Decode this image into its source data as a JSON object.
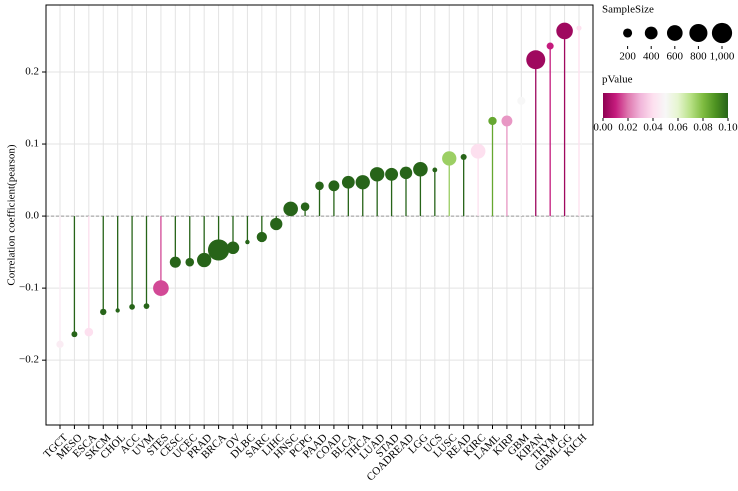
{
  "chart_data": {
    "type": "lollipop",
    "y_label": "Correlation coefficient(pearson)",
    "categories": [
      "TGCT",
      "MESO",
      "ESCA",
      "SKCM",
      "CHOL",
      "ACC",
      "UVM",
      "STES",
      "CESC",
      "UCEC",
      "PRAD",
      "BRCA",
      "OV",
      "DLBC",
      "SARC",
      "LIHC",
      "HNSC",
      "PCPG",
      "PAAD",
      "COAD",
      "BLCA",
      "THCA",
      "LUAD",
      "STAD",
      "COADREAD",
      "LGG",
      "UCS",
      "LUSC",
      "READ",
      "KIRC",
      "LAML",
      "KIRP",
      "GBM",
      "KIPAN",
      "THYM",
      "GBMLGG",
      "KICH"
    ],
    "values": [
      -0.178,
      -0.164,
      -0.161,
      -0.133,
      -0.131,
      -0.126,
      -0.125,
      -0.1,
      -0.064,
      -0.064,
      -0.061,
      -0.047,
      -0.044,
      -0.036,
      -0.029,
      -0.011,
      0.01,
      0.013,
      0.042,
      0.042,
      0.047,
      0.047,
      0.058,
      0.058,
      0.06,
      0.065,
      0.064,
      0.08,
      0.082,
      0.09,
      0.132,
      0.132,
      0.16,
      0.217,
      0.236,
      0.257,
      0.261
    ],
    "sizes": [
      130,
      85,
      180,
      100,
      45,
      79,
      80,
      600,
      300,
      180,
      500,
      1100,
      380,
      48,
      260,
      370,
      520,
      180,
      180,
      290,
      400,
      500,
      510,
      410,
      380,
      520,
      57,
      500,
      90,
      530,
      170,
      290,
      160,
      880,
      120,
      670,
      65
    ],
    "pvalues": [
      0.045,
      0.1,
      0.04,
      0.1,
      0.1,
      0.1,
      0.1,
      0.015,
      0.1,
      0.1,
      0.1,
      0.1,
      0.1,
      0.1,
      0.1,
      0.1,
      0.1,
      0.1,
      0.1,
      0.1,
      0.1,
      0.1,
      0.1,
      0.1,
      0.1,
      0.1,
      0.1,
      0.075,
      0.1,
      0.04,
      0.085,
      0.025,
      0.05,
      0.003,
      0.01,
      0.003,
      0.04
    ],
    "ylim": [
      -0.29,
      0.293
    ],
    "yticks": [
      {
        "value": -0.2,
        "label": "−0.2"
      },
      {
        "value": -0.1,
        "label": "−0.1"
      },
      {
        "value": 0,
        "label": "0.0"
      },
      0.1,
      0.2
    ],
    "grid": true,
    "size_legend_title": "SampleSize",
    "size_legend_ticks": [
      200,
      400,
      600,
      800,
      {
        "value": 1000,
        "label": "1,000"
      }
    ],
    "color_legend_title": "pValue",
    "color_legend_lim": [
      0,
      0.1
    ],
    "color_legend_ticks": [
      {
        "value": 0,
        "label": "0.00"
      },
      {
        "value": 0.02,
        "label": "0.02"
      },
      {
        "value": 0.04,
        "label": "0.04"
      },
      {
        "value": 0.06,
        "label": "0.06"
      },
      {
        "value": 0.08,
        "label": "0.08"
      },
      {
        "value": 0.1,
        "label": "0.10"
      }
    ],
    "colorscale": [
      "#8e0152",
      "#c51b7d",
      "#de77ae",
      "#f1b6da",
      "#fde0ef",
      "#f7f7f7",
      "#e6f5d0",
      "#b8e186",
      "#7fbc41",
      "#4d9221",
      "#276419"
    ]
  }
}
